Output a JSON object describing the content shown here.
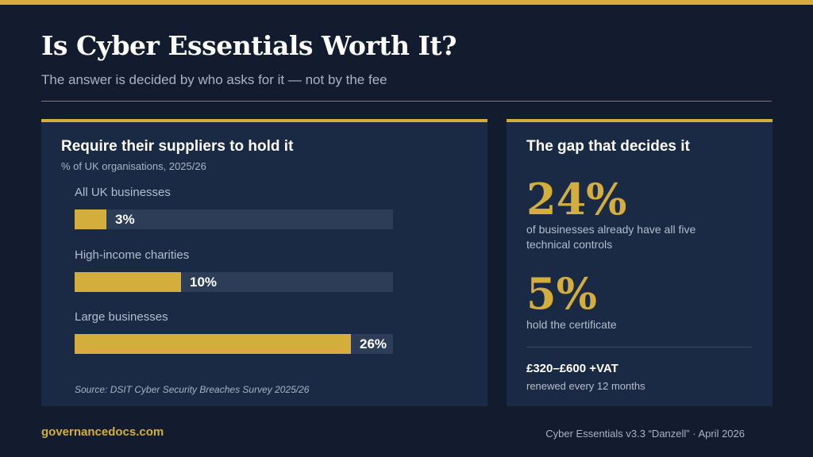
{
  "header": {
    "title": "Is Cyber Essentials Worth It?",
    "subtitle": "The answer is decided by who asks for it — not by the fee"
  },
  "colors": {
    "background": "#121c2e",
    "card": "#1b2a44",
    "accent": "#d4ae3c",
    "track": "#2e3d57"
  },
  "left_card": {
    "title": "Require their suppliers to hold it",
    "subtitle": "% of UK organisations, 2025/26",
    "source": "Source: DSIT Cyber Security Breaches Survey 2025/26"
  },
  "chart_data": {
    "type": "bar",
    "orientation": "horizontal",
    "categories": [
      "All UK businesses",
      "High-income charities",
      "Large businesses"
    ],
    "values": [
      3,
      10,
      26
    ],
    "value_labels": [
      "3%",
      "10%",
      "26%"
    ],
    "title": "Require their suppliers to hold it",
    "subtitle": "% of UK organisations, 2025/26",
    "xlim": [
      0,
      30
    ],
    "grid": false
  },
  "right_card": {
    "title": "The gap that decides it",
    "stat1_value": "24%",
    "stat1_desc": "of businesses already have all five technical controls",
    "stat2_value": "5%",
    "stat2_desc": "hold the certificate",
    "price": "£320–£600 +VAT",
    "renewal": "renewed every 12 months"
  },
  "footer": {
    "site": "governancedocs.com",
    "version": "Cyber Essentials v3.3 “Danzell” · April 2026"
  }
}
